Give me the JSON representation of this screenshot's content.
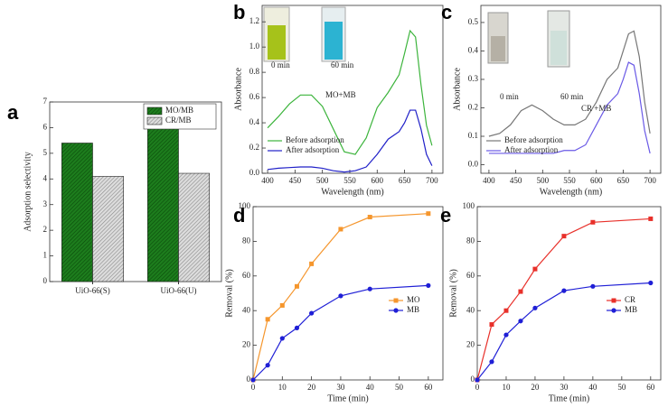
{
  "chart_data": [
    {
      "type": "bar",
      "panel": "a",
      "ylabel": "Adsorption selectivity",
      "categories": [
        "UiO-66(S)",
        "UiO-66(U)"
      ],
      "series": [
        {
          "name": "MO/MB",
          "color": "#1d7d1d",
          "values": [
            5.4,
            6.25
          ]
        },
        {
          "name": "CR/MB",
          "color": "#8a8a8a",
          "values": [
            4.1,
            4.22
          ]
        }
      ],
      "ylim": [
        0,
        7
      ],
      "yticks": [
        0,
        1,
        2,
        3,
        4,
        5,
        6,
        7
      ],
      "legend": "top-right",
      "hatch": true
    },
    {
      "type": "line",
      "panel": "b",
      "xlabel": "Wavelength (nm)",
      "ylabel": "Absorbance",
      "x": [
        400,
        420,
        440,
        460,
        480,
        500,
        520,
        540,
        560,
        580,
        600,
        620,
        640,
        650,
        660,
        670,
        680,
        690,
        700
      ],
      "series": [
        {
          "name": "Before adsorption",
          "color": "#3cb43c",
          "values": [
            0.36,
            0.45,
            0.55,
            0.62,
            0.62,
            0.53,
            0.35,
            0.17,
            0.15,
            0.28,
            0.52,
            0.64,
            0.78,
            0.95,
            1.13,
            1.08,
            0.7,
            0.38,
            0.22
          ]
        },
        {
          "name": "After adsorption",
          "color": "#2020c8",
          "values": [
            0.03,
            0.04,
            0.045,
            0.05,
            0.05,
            0.04,
            0.02,
            0.01,
            0.02,
            0.05,
            0.15,
            0.27,
            0.33,
            0.4,
            0.5,
            0.5,
            0.35,
            0.15,
            0.06
          ]
        }
      ],
      "xlim": [
        390,
        720
      ],
      "xticks": [
        400,
        450,
        500,
        550,
        600,
        650,
        700
      ],
      "ylim": [
        0,
        1.33
      ],
      "yticks": [
        {
          "value": 0,
          "label": "0.0"
        },
        0.2,
        0.4,
        0.6,
        0.8,
        {
          "value": 1,
          "label": "1.0"
        },
        1.2
      ],
      "legend": "bottom-left",
      "annotations": [
        "0 min",
        "60 min",
        "MO+MB"
      ]
    },
    {
      "type": "line",
      "panel": "c",
      "xlabel": "Wavelength (nm)",
      "ylabel": "Absorbance",
      "x": [
        400,
        420,
        440,
        460,
        480,
        500,
        520,
        540,
        560,
        580,
        600,
        620,
        640,
        650,
        660,
        670,
        680,
        690,
        700
      ],
      "series": [
        {
          "name": "Before adsorption",
          "color": "#777777",
          "values": [
            0.1,
            0.11,
            0.14,
            0.19,
            0.21,
            0.19,
            0.16,
            0.14,
            0.14,
            0.16,
            0.22,
            0.3,
            0.34,
            0.4,
            0.46,
            0.47,
            0.38,
            0.22,
            0.11
          ]
        },
        {
          "name": "After adsorption",
          "color": "#6a5ae6",
          "values": [
            0.04,
            0.04,
            0.04,
            0.04,
            0.04,
            0.04,
            0.04,
            0.05,
            0.05,
            0.07,
            0.14,
            0.21,
            0.25,
            0.3,
            0.36,
            0.35,
            0.25,
            0.12,
            0.04
          ]
        }
      ],
      "xlim": [
        385,
        720
      ],
      "xticks": [
        400,
        450,
        500,
        550,
        600,
        650,
        700
      ],
      "ylim": [
        -0.03,
        0.56
      ],
      "yticks": [
        {
          "value": 0,
          "label": "0.0"
        },
        0.1,
        0.2,
        0.3,
        0.4,
        0.5
      ],
      "legend": "bottom-left",
      "annotations": [
        "0 min",
        "60 min",
        "CR +MB"
      ]
    },
    {
      "type": "line",
      "panel": "d",
      "xlabel": "Time (min)",
      "ylabel": "Removal (%)",
      "x": [
        0,
        5,
        10,
        15,
        20,
        30,
        40,
        60
      ],
      "series": [
        {
          "name": "MO",
          "color": "#f5962d",
          "marker": "square",
          "values": [
            0,
            35,
            43,
            54,
            67,
            87,
            94,
            96
          ]
        },
        {
          "name": "MB",
          "color": "#1f1fd6",
          "marker": "circle",
          "values": [
            0,
            8.5,
            24,
            30,
            38.5,
            48.5,
            52.5,
            54.5
          ]
        }
      ],
      "xlim": [
        0,
        65
      ],
      "xticks": [
        0,
        10,
        20,
        30,
        40,
        50,
        60
      ],
      "ylim": [
        0,
        100
      ],
      "yticks": [
        0,
        20,
        40,
        60,
        80,
        100
      ],
      "legend": "right"
    },
    {
      "type": "line",
      "panel": "e",
      "xlabel": "Time (min)",
      "ylabel": "Removal (%)",
      "x": [
        0,
        5,
        10,
        15,
        20,
        30,
        40,
        60
      ],
      "series": [
        {
          "name": "CR",
          "color": "#e8302a",
          "marker": "square",
          "values": [
            0,
            32,
            40,
            51,
            64,
            83,
            91,
            93
          ]
        },
        {
          "name": "MB",
          "color": "#1f1fd6",
          "marker": "circle",
          "values": [
            0,
            10.5,
            26,
            34,
            41.5,
            51.5,
            54,
            56
          ]
        }
      ],
      "xlim": [
        0,
        63.5
      ],
      "xticks": [
        0,
        10,
        20,
        30,
        40,
        50,
        60
      ],
      "ylim": [
        0,
        100
      ],
      "yticks": [
        0,
        20,
        40,
        60,
        80,
        100
      ],
      "legend": "right"
    }
  ]
}
